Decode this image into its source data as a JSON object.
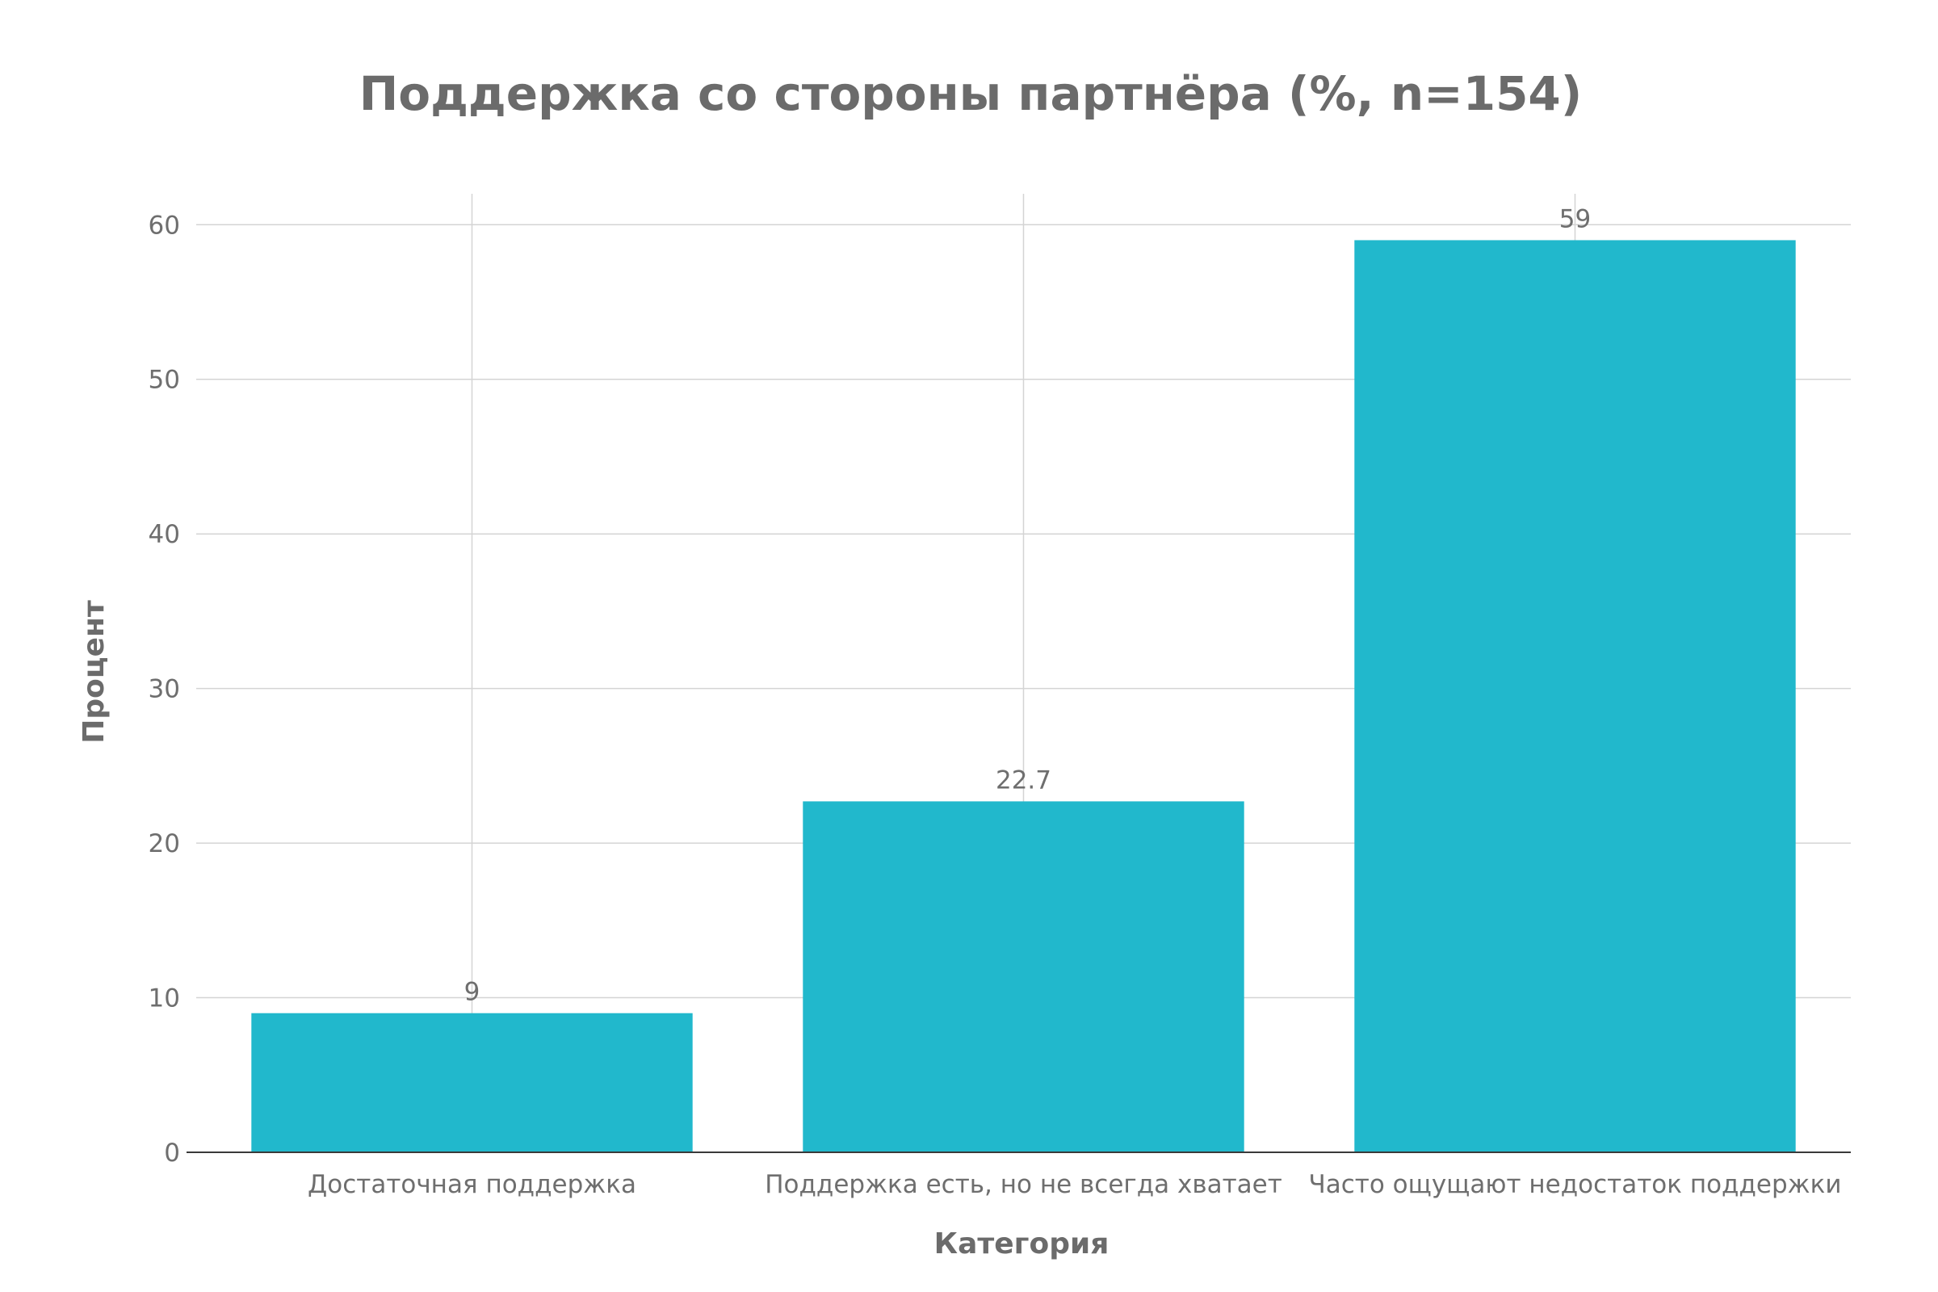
{
  "chart_data": {
    "type": "bar",
    "title": "Поддержка со стороны партнёра (%, n=154)",
    "xlabel": "Категория",
    "ylabel": "Процент",
    "categories": [
      "Достаточная поддержка",
      "Поддержка есть, но не всегда хватает",
      "Часто ощущают недостаток поддержки"
    ],
    "values": [
      9,
      22.7,
      59
    ],
    "value_labels": [
      "9",
      "22.7",
      "59"
    ],
    "yticks": [
      "0",
      "10",
      "20",
      "30",
      "40",
      "50",
      "60"
    ],
    "ylim": [
      0,
      62
    ],
    "grid": true,
    "legend": false,
    "bar_color": "#21b8cc"
  }
}
